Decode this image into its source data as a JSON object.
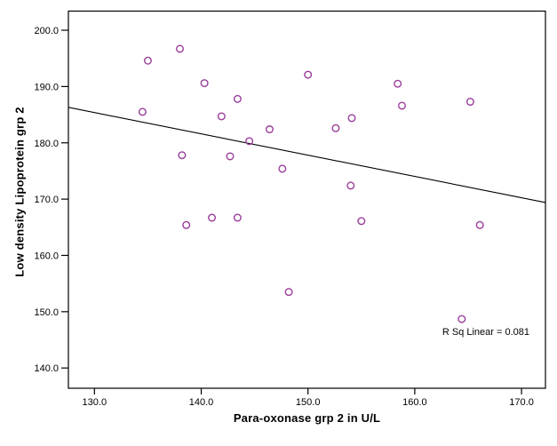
{
  "chart_data": {
    "type": "scatter",
    "xlabel": "Para-oxonase grp 2 in U/L",
    "ylabel": "Low density Lipoprotein grp 2",
    "annotation": "R Sq Linear = 0.081",
    "xlim": [
      127.56,
      172.24
    ],
    "ylim": [
      136.4,
      203.4
    ],
    "x_ticks": [
      130.0,
      140.0,
      150.0,
      160.0,
      170.0
    ],
    "x_tick_labels": [
      "130.0",
      "140.0",
      "150.0",
      "160.0",
      "170.0"
    ],
    "y_ticks": [
      140.0,
      150.0,
      160.0,
      170.0,
      180.0,
      190.0,
      200.0
    ],
    "y_tick_labels": [
      "140.0",
      "150.0",
      "160.0",
      "170.0",
      "180.0",
      "190.0",
      "200.0"
    ],
    "grid": false,
    "legend": "none",
    "points": [
      [
        138.0,
        196.7
      ],
      [
        135.0,
        194.6
      ],
      [
        140.3,
        190.6
      ],
      [
        143.4,
        187.8
      ],
      [
        134.5,
        185.5
      ],
      [
        141.9,
        184.7
      ],
      [
        150.0,
        192.1
      ],
      [
        158.4,
        190.5
      ],
      [
        158.8,
        186.6
      ],
      [
        165.2,
        187.3
      ],
      [
        154.1,
        184.4
      ],
      [
        152.6,
        182.6
      ],
      [
        146.4,
        182.4
      ],
      [
        144.5,
        180.3
      ],
      [
        138.2,
        177.8
      ],
      [
        142.7,
        177.6
      ],
      [
        147.6,
        175.4
      ],
      [
        154.0,
        172.4
      ],
      [
        138.6,
        165.4
      ],
      [
        141.0,
        166.7
      ],
      [
        143.4,
        166.7
      ],
      [
        155.0,
        166.1
      ],
      [
        166.1,
        165.4
      ],
      [
        148.2,
        153.5
      ],
      [
        164.4,
        148.7
      ]
    ],
    "fit_line": {
      "x1": 127.56,
      "y1": 186.3,
      "x2": 172.24,
      "y2": 169.4
    },
    "r_squared": 0.081,
    "marker_color": "#993D99",
    "line_color": "#000000",
    "frame_color": "#000000",
    "background_color": "#ffffff"
  }
}
